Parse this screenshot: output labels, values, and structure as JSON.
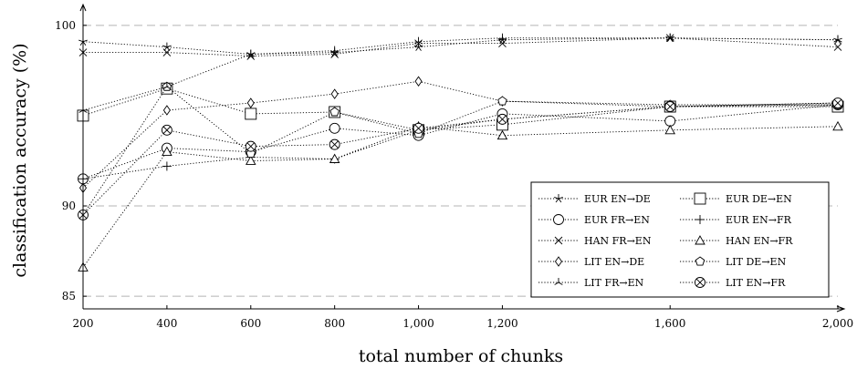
{
  "chart_data": {
    "type": "line",
    "title": "",
    "xlabel": "total number of chunks",
    "ylabel": "classification accuracy (%)",
    "x_ticks": [
      200,
      400,
      600,
      800,
      1000,
      1200,
      1600,
      2000
    ],
    "x_tick_labels": [
      "200",
      "400",
      "600",
      "800",
      "1,000",
      "1,200",
      "1,600",
      "2,000"
    ],
    "y_ticks": [
      85,
      90,
      100
    ],
    "y_tick_labels": [
      "85",
      "90",
      "100"
    ],
    "xlim": [
      200,
      2000
    ],
    "ylim": [
      84.3,
      101
    ],
    "grid": "horizontal dashed at y ticks",
    "legend_position": "bottom-right",
    "series": [
      {
        "name": "EUR EN→DE",
        "marker": "star",
        "x": [
          200,
          400,
          600,
          800,
          1000,
          1200,
          1600,
          2000
        ],
        "y": [
          99.1,
          98.8,
          98.4,
          98.5,
          98.8,
          99.2,
          99.3,
          99.2
        ]
      },
      {
        "name": "EUR DE→EN",
        "marker": "square",
        "x": [
          200,
          400,
          600,
          800,
          1000,
          1200,
          1600,
          2000
        ],
        "y": [
          95.0,
          96.5,
          95.1,
          95.2,
          94.2,
          94.5,
          95.5,
          95.5
        ]
      },
      {
        "name": "EUR FR→EN",
        "marker": "circle",
        "x": [
          200,
          400,
          600,
          800,
          1000,
          1200,
          1600,
          2000
        ],
        "y": [
          91.5,
          93.2,
          93.0,
          94.3,
          93.9,
          95.1,
          94.7,
          95.6
        ]
      },
      {
        "name": "EUR EN→FR",
        "marker": "plus",
        "x": [
          200,
          400,
          600,
          800,
          1000,
          1200,
          1600,
          2000
        ],
        "y": [
          91.5,
          92.2,
          92.7,
          92.6,
          94.2,
          94.8,
          95.5,
          95.6
        ]
      },
      {
        "name": "HAN FR→EN",
        "marker": "cross",
        "x": [
          200,
          400,
          600,
          800,
          1000,
          1200,
          1600,
          2000
        ],
        "y": [
          98.5,
          98.5,
          98.3,
          98.4,
          99.0,
          99.0,
          99.3,
          98.8
        ]
      },
      {
        "name": "HAN EN→FR",
        "marker": "triangle",
        "x": [
          200,
          400,
          600,
          800,
          1000,
          1200,
          1600,
          2000
        ],
        "y": [
          86.6,
          93.0,
          92.5,
          92.6,
          94.4,
          93.9,
          94.2,
          94.4
        ]
      },
      {
        "name": "LIT EN→DE",
        "marker": "diamond",
        "x": [
          200,
          400,
          600,
          800,
          1000,
          1200,
          1600,
          2000
        ],
        "y": [
          91.0,
          95.3,
          95.7,
          96.2,
          96.9,
          95.8,
          95.5,
          95.7
        ]
      },
      {
        "name": "LIT DE→EN",
        "marker": "pentagon",
        "x": [
          200,
          400,
          600,
          800,
          1000,
          1200,
          1600,
          2000
        ],
        "y": [
          89.5,
          96.6,
          92.9,
          95.2,
          94.0,
          95.8,
          95.6,
          95.6
        ]
      },
      {
        "name": "LIT FR→EN",
        "marker": "tristar",
        "x": [
          200,
          400,
          600,
          800,
          1000,
          1200,
          1600,
          2000
        ],
        "y": [
          95.3,
          96.6,
          98.4,
          98.6,
          99.1,
          99.3,
          99.3,
          99.2
        ]
      },
      {
        "name": "LIT EN→FR",
        "marker": "otimes",
        "x": [
          200,
          400,
          600,
          800,
          1000,
          1200,
          1600,
          2000
        ],
        "y": [
          89.5,
          94.2,
          93.3,
          93.4,
          94.3,
          94.8,
          95.5,
          95.7
        ]
      }
    ]
  }
}
